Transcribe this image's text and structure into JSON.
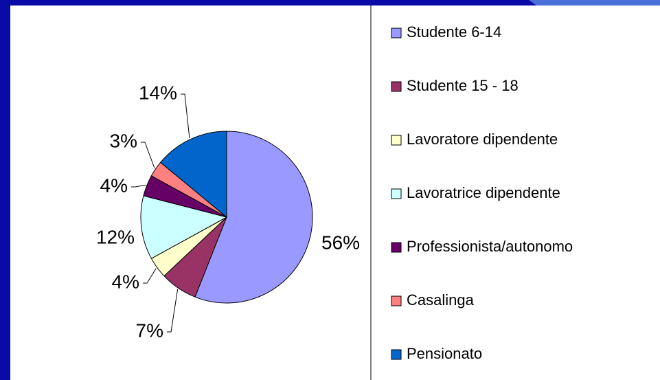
{
  "chart_data": {
    "type": "pie",
    "categories": [
      "Studente 6-14",
      "Studente 15 - 18",
      "Lavoratore dipendente",
      "Lavoratrice dipendente",
      "Professionista/autonomo",
      "Casalinga",
      "Pensionato"
    ],
    "values": [
      56,
      7,
      4,
      12,
      4,
      3,
      14
    ],
    "value_labels": [
      "56%",
      "7%",
      "4%",
      "12%",
      "4%",
      "3%",
      "14%"
    ],
    "colors": [
      "#9999ff",
      "#993366",
      "#ffffcc",
      "#ccffff",
      "#660066",
      "#ff8080",
      "#0066cc"
    ],
    "legend": "right"
  }
}
